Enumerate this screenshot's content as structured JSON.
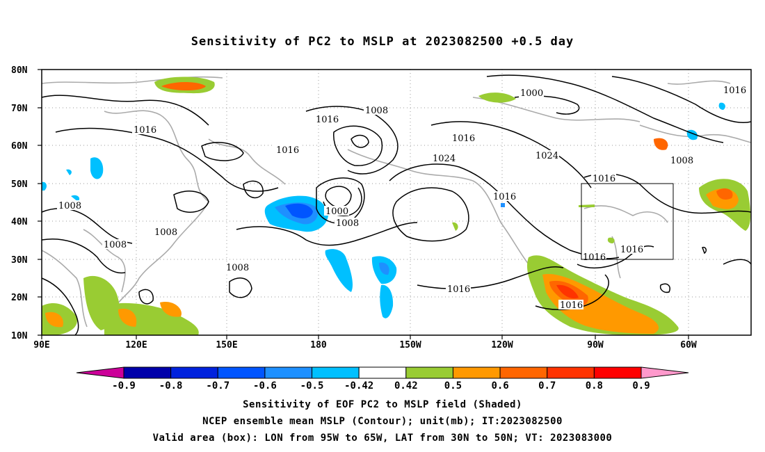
{
  "title": "Sensitivity of PC2 to MSLP at 2023082500 +0.5 day",
  "lat_labels": [
    "80N",
    "70N",
    "60N",
    "50N",
    "40N",
    "30N",
    "20N",
    "10N"
  ],
  "lon_labels": [
    "90E",
    "120E",
    "150E",
    "180",
    "150W",
    "120W",
    "90W",
    "60W"
  ],
  "contour_labels": [
    "1000",
    "1008",
    "1016",
    "1024"
  ],
  "colorbar": {
    "labels": [
      "-0.9",
      "-0.8",
      "-0.7",
      "-0.6",
      "-0.5",
      "-0.42",
      "0.42",
      "0.5",
      "0.6",
      "0.7",
      "0.8",
      "0.9"
    ],
    "colors": [
      "#cc0099",
      "#0000aa",
      "#0022dd",
      "#0055ff",
      "#1e90ff",
      "#00c0ff",
      "#ffffff",
      "#99cc33",
      "#ff9900",
      "#ff6600",
      "#ff3300",
      "#ff0000",
      "#ff99cc"
    ]
  },
  "captions": {
    "line1": "Sensitivity of EOF PC2 to MSLP field (Shaded)",
    "line2": "NCEP ensemble mean MSLP (Contour); unit(mb); IT:2023082500",
    "line3": "Valid area (box): LON from 95W to 65W, LAT from 30N to 50N; VT: 2023083000"
  },
  "valid_area": {
    "lon": [
      "95W",
      "65W"
    ],
    "lat": [
      "30N",
      "50N"
    ]
  }
}
